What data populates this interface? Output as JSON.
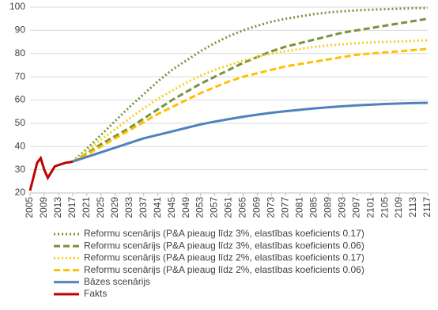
{
  "chart_data": {
    "type": "line",
    "x": [
      2005,
      2006,
      2007,
      2008,
      2009,
      2010,
      2011,
      2012,
      2013,
      2014,
      2015,
      2016,
      2017,
      2021,
      2025,
      2029,
      2033,
      2037,
      2041,
      2045,
      2049,
      2053,
      2057,
      2061,
      2065,
      2069,
      2073,
      2077,
      2081,
      2085,
      2089,
      2093,
      2097,
      2101,
      2105,
      2109,
      2113,
      2117
    ],
    "xlim": [
      2005,
      2117
    ],
    "xticks": [
      2005,
      2009,
      2013,
      2017,
      2021,
      2025,
      2029,
      2033,
      2037,
      2041,
      2045,
      2049,
      2053,
      2057,
      2061,
      2065,
      2069,
      2073,
      2077,
      2081,
      2085,
      2089,
      2093,
      2097,
      2101,
      2105,
      2109,
      2113,
      2117
    ],
    "ylim": [
      20,
      100
    ],
    "yticks": [
      20,
      30,
      40,
      50,
      60,
      70,
      80,
      90,
      100
    ],
    "grid": true,
    "series": [
      {
        "name": "Reformu scenārijs (P&A pieaug līdz 3%, elastības koeficients 0.17)",
        "color": "#77933c",
        "style": "dotted",
        "values": [
          null,
          null,
          null,
          null,
          null,
          null,
          null,
          null,
          null,
          null,
          null,
          null,
          33.5,
          39,
          45,
          51,
          57,
          62.5,
          68,
          73,
          77,
          81,
          84.5,
          87.5,
          90,
          92,
          93.7,
          95,
          96,
          97,
          97.7,
          98.2,
          98.6,
          98.9,
          99.1,
          99.3,
          99.5,
          99.6
        ]
      },
      {
        "name": "Reformu scenārijs (P&A pieaug līdz 3%, elastības koeficients 0.06)",
        "color": "#77933c",
        "style": "dashed",
        "values": [
          null,
          null,
          null,
          null,
          null,
          null,
          null,
          null,
          null,
          null,
          null,
          null,
          33.5,
          37,
          41,
          44.5,
          48,
          52,
          56,
          60,
          63.5,
          67,
          70,
          73,
          76,
          78.5,
          81,
          83,
          84.5,
          86,
          87.5,
          89,
          90,
          91,
          92,
          93,
          94,
          95
        ]
      },
      {
        "name": "Reformu scenārijs (P&A pieaug līdz 2%, elastības koeficients 0.17)",
        "color": "#f2d21b",
        "style": "dotted",
        "values": [
          null,
          null,
          null,
          null,
          null,
          null,
          null,
          null,
          null,
          null,
          null,
          null,
          33.5,
          38,
          43,
          47.5,
          52,
          56.5,
          60.5,
          64,
          67.5,
          70.5,
          73,
          75,
          77,
          78.5,
          80,
          81,
          82,
          82.8,
          83.5,
          84,
          84.5,
          84.8,
          85,
          85.2,
          85.5,
          85.7
        ]
      },
      {
        "name": "Reformu scenārijs (P&A pieaug līdz 2%, elastības koeficients 0.06)",
        "color": "#ffc000",
        "style": "dashed",
        "values": [
          null,
          null,
          null,
          null,
          null,
          null,
          null,
          null,
          null,
          null,
          null,
          null,
          33.5,
          36.5,
          40,
          43.5,
          47,
          50.5,
          54,
          57,
          60,
          63,
          65.5,
          68,
          70,
          71.5,
          73,
          74.5,
          75.5,
          76.5,
          77.5,
          78.5,
          79.5,
          80,
          80.5,
          81,
          81.5,
          82
        ]
      },
      {
        "name": "Bāzes scenārijs",
        "color": "#4f81bd",
        "style": "solid",
        "values": [
          null,
          null,
          null,
          null,
          null,
          null,
          null,
          null,
          null,
          null,
          null,
          null,
          33.5,
          35.5,
          37.5,
          39.5,
          41.5,
          43.5,
          45,
          46.5,
          48,
          49.5,
          50.7,
          51.8,
          52.8,
          53.7,
          54.5,
          55.2,
          55.8,
          56.4,
          56.9,
          57.3,
          57.7,
          58,
          58.3,
          58.5,
          58.7,
          58.8
        ]
      },
      {
        "name": "Fakts",
        "color": "#c00000",
        "style": "solid",
        "values": [
          21,
          27,
          33,
          35,
          30,
          26.5,
          29,
          31.5,
          32,
          32.5,
          33,
          33.2,
          33.5,
          null,
          null,
          null,
          null,
          null,
          null,
          null,
          null,
          null,
          null,
          null,
          null,
          null,
          null,
          null,
          null,
          null,
          null,
          null,
          null,
          null,
          null,
          null,
          null,
          null
        ]
      }
    ]
  }
}
